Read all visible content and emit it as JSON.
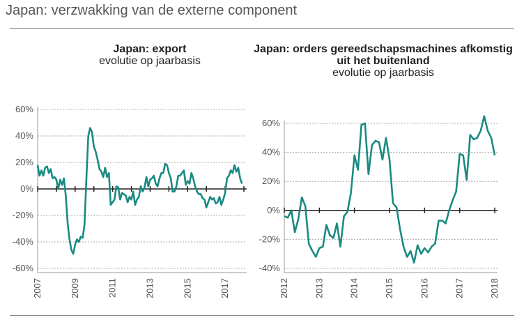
{
  "page_title": "Japan: verzwakking van de externe component",
  "chart_data": [
    {
      "type": "line",
      "title": "Japan: export",
      "subtitle": "evolutie op jaarbasis",
      "xlabel": "",
      "ylabel": "",
      "y_ticks": [
        "60%",
        "40%",
        "20%",
        "0%",
        "-20%",
        "-40%",
        "-60%"
      ],
      "ylim": [
        -60,
        60
      ],
      "x_ticks": [
        "2007",
        "2009",
        "2011",
        "2013",
        "2015",
        "2017"
      ],
      "xlim": [
        2007.0,
        2018.0
      ],
      "color": "#1a8a82",
      "series": [
        {
          "name": "export",
          "x": [
            2007.0,
            2007.1,
            2007.2,
            2007.3,
            2007.4,
            2007.5,
            2007.6,
            2007.7,
            2007.8,
            2007.9,
            2008.0,
            2008.1,
            2008.2,
            2008.3,
            2008.4,
            2008.5,
            2008.6,
            2008.7,
            2008.8,
            2008.9,
            2009.0,
            2009.1,
            2009.2,
            2009.3,
            2009.4,
            2009.5,
            2009.6,
            2009.7,
            2009.8,
            2009.9,
            2010.0,
            2010.1,
            2010.2,
            2010.3,
            2010.4,
            2010.5,
            2010.6,
            2010.7,
            2010.8,
            2010.9,
            2011.0,
            2011.1,
            2011.2,
            2011.3,
            2011.4,
            2011.5,
            2011.6,
            2011.7,
            2011.8,
            2011.9,
            2012.0,
            2012.1,
            2012.2,
            2012.3,
            2012.4,
            2012.5,
            2012.6,
            2012.7,
            2012.8,
            2012.9,
            2013.0,
            2013.1,
            2013.2,
            2013.3,
            2013.4,
            2013.5,
            2013.6,
            2013.7,
            2013.8,
            2013.9,
            2014.0,
            2014.1,
            2014.2,
            2014.3,
            2014.4,
            2014.5,
            2014.6,
            2014.7,
            2014.8,
            2014.9,
            2015.0,
            2015.1,
            2015.2,
            2015.3,
            2015.4,
            2015.5,
            2015.6,
            2015.7,
            2015.8,
            2015.9,
            2016.0,
            2016.1,
            2016.2,
            2016.3,
            2016.4,
            2016.5,
            2016.6,
            2016.7,
            2016.8,
            2016.9,
            2017.0,
            2017.1,
            2017.2,
            2017.3,
            2017.4,
            2017.5,
            2017.6,
            2017.7,
            2017.8,
            2017.9
          ],
          "values": [
            18,
            10,
            14,
            10,
            16,
            17,
            12,
            15,
            8,
            9,
            7,
            0,
            7,
            3,
            8,
            -5,
            -26,
            -38,
            -46,
            -49,
            -42,
            -38,
            -40,
            -36,
            -37,
            -27,
            8,
            40,
            46,
            43,
            32,
            28,
            22,
            15,
            13,
            9,
            16,
            9,
            12,
            -12,
            -10,
            -8,
            2,
            1,
            -8,
            -3,
            -4,
            -5,
            -10,
            -6,
            -8,
            -2,
            -12,
            -8,
            -6,
            2,
            -2,
            1,
            9,
            2,
            7,
            8,
            10,
            4,
            2,
            8,
            12,
            12,
            19,
            18,
            12,
            8,
            -2,
            -2,
            2,
            10,
            10,
            12,
            14,
            3,
            6,
            4,
            12,
            8,
            2,
            -2,
            -4,
            -4,
            -7,
            -8,
            -14,
            -10,
            -6,
            -8,
            -7,
            -11,
            -10,
            -6,
            -12,
            -8,
            -3,
            8,
            10,
            14,
            12,
            18,
            13,
            16,
            8,
            4
          ]
        }
      ]
    },
    {
      "type": "line",
      "title": "Japan: orders gereedschapsmachines afkomstig uit het buitenland",
      "subtitle": "evolutie op jaarbasis",
      "xlabel": "",
      "ylabel": "",
      "y_ticks": [
        "60%",
        "40%",
        "20%",
        "0%",
        "-20%",
        "-40%"
      ],
      "ylim": [
        -40,
        60
      ],
      "x_ticks": [
        "2012",
        "2013",
        "2014",
        "2015",
        "2016",
        "2017",
        "2018"
      ],
      "xlim": [
        2012.0,
        2018.0
      ],
      "color": "#1a8a82",
      "series": [
        {
          "name": "orders",
          "x": [
            2012.0,
            2012.1,
            2012.2,
            2012.3,
            2012.4,
            2012.5,
            2012.6,
            2012.7,
            2012.8,
            2012.9,
            2013.0,
            2013.1,
            2013.2,
            2013.3,
            2013.4,
            2013.5,
            2013.6,
            2013.7,
            2013.8,
            2013.9,
            2014.0,
            2014.1,
            2014.2,
            2014.3,
            2014.4,
            2014.5,
            2014.6,
            2014.7,
            2014.8,
            2014.9,
            2015.0,
            2015.1,
            2015.2,
            2015.3,
            2015.4,
            2015.5,
            2015.6,
            2015.7,
            2015.8,
            2015.9,
            2016.0,
            2016.1,
            2016.2,
            2016.3,
            2016.4,
            2016.5,
            2016.6,
            2016.7,
            2016.8,
            2016.9,
            2017.0,
            2017.1,
            2017.2,
            2017.3,
            2017.4,
            2017.5,
            2017.6,
            2017.7,
            2017.8,
            2017.9,
            2018.0
          ],
          "values": [
            -4,
            -5,
            0,
            -15,
            -6,
            9,
            3,
            -23,
            -28,
            -32,
            -26,
            -25,
            -10,
            -17,
            -19,
            -9,
            -25,
            -4,
            -1,
            12,
            38,
            28,
            59,
            60,
            25,
            45,
            48,
            47,
            35,
            50,
            35,
            5,
            2,
            -13,
            -25,
            -32,
            -28,
            -36,
            -24,
            -30,
            -26,
            -29,
            -25,
            -23,
            -7,
            -7,
            -9,
            0,
            7,
            13,
            39,
            38,
            21,
            52,
            49,
            50,
            55,
            65,
            55,
            50,
            38
          ]
        }
      ]
    }
  ]
}
